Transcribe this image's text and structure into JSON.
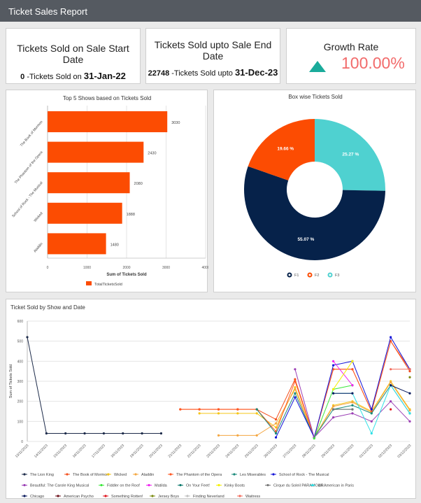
{
  "header": {
    "title": "Ticket Sales Report"
  },
  "kpis": [
    {
      "title": "Tickets Sold on Sale Start Date",
      "value": "0",
      "text": " -Tickets Sold on ",
      "date": "31-Jan-22"
    },
    {
      "title": "Tickets Sold upto Sale End Date",
      "value": "22748",
      "text": " -Tickets Sold upto ",
      "date": "31-Dec-23"
    },
    {
      "title": "Growth Rate",
      "value": "100.00%",
      "icon": "triangle-up-icon",
      "icon_color": "#1aab9b",
      "value_color": "#f26b6b"
    }
  ],
  "chart_data": [
    {
      "type": "bar",
      "orientation": "horizontal",
      "title": "Top 5 Shows based on Tickets Sold",
      "categories": [
        "The Book of Mormon",
        "The Phantom of the Opera",
        "School of Rock - The Musical",
        "Wicked",
        "Aladdin"
      ],
      "values": [
        3030,
        2430,
        2080,
        1888,
        1480
      ],
      "xlabel": "Sum of Tickets Sold",
      "xlim": [
        0,
        4000
      ],
      "xticks": [
        "0",
        "1000",
        "2000",
        "3000",
        "4000"
      ],
      "legend": "TotalTicketsSold",
      "color": "#fc4c02",
      "grid": true,
      "legend_position": "bottom"
    },
    {
      "type": "pie",
      "donut": true,
      "title": "Box wise Tickets Sold",
      "slices": [
        {
          "name": "F3",
          "value": 25.27,
          "label": "25.27 %",
          "color": "#4fd1d0"
        },
        {
          "name": "F1",
          "value": 55.07,
          "label": "55.07 %",
          "color": "#06224a"
        },
        {
          "name": "F2",
          "value": 19.66,
          "label": "19.66 %",
          "color": "#fc4c02"
        }
      ],
      "legend_position": "bottom"
    },
    {
      "type": "line",
      "title": "Ticket Sold by Show and Date",
      "ylabel": "Sum of Tickets Sold",
      "ylim": [
        0,
        600
      ],
      "yticks": [
        "0",
        "100",
        "200",
        "300",
        "400",
        "500",
        "600"
      ],
      "x": [
        "13/11/2023",
        "14/11/2023",
        "15/11/2023",
        "16/11/2023",
        "17/11/2023",
        "18/11/2023",
        "19/11/2023",
        "20/11/2023",
        "21/11/2023",
        "22/11/2023",
        "23/11/2023",
        "24/11/2023",
        "25/11/2023",
        "26/11/2023",
        "27/11/2023",
        "28/11/2023",
        "29/11/2023",
        "30/11/2023",
        "01/12/2023",
        "02/12/2023",
        "03/12/2023"
      ],
      "legend_position": "bottom",
      "grid": true,
      "series": [
        {
          "name": "The Lion King",
          "color": "#1d2b4a",
          "values": [
            520,
            40,
            40,
            40,
            40,
            40,
            40,
            40,
            null,
            null,
            null,
            null,
            null,
            null,
            null,
            null,
            null,
            null,
            null,
            null,
            null
          ]
        },
        {
          "name": "The Book of Mormon",
          "color": "#f4511e",
          "values": [
            null,
            null,
            null,
            null,
            null,
            null,
            null,
            null,
            160,
            160,
            160,
            160,
            160,
            110,
            310,
            20,
            360,
            360,
            150,
            500,
            350
          ]
        },
        {
          "name": "Wicked",
          "color": "#f5c518",
          "values": [
            null,
            null,
            null,
            null,
            null,
            null,
            null,
            null,
            null,
            140,
            140,
            140,
            140,
            70,
            270,
            20,
            180,
            200,
            150,
            300,
            160
          ]
        },
        {
          "name": "Aladdin",
          "color": "#f4a742",
          "values": [
            null,
            null,
            null,
            null,
            null,
            null,
            null,
            null,
            null,
            null,
            30,
            30,
            30,
            90,
            260,
            20,
            175,
            195,
            145,
            295,
            155
          ]
        },
        {
          "name": "The Phantom of the Opera",
          "color": "#ff5722",
          "values": [
            null,
            null,
            null,
            null,
            null,
            null,
            null,
            null,
            160,
            160,
            160,
            160,
            160,
            50,
            300,
            20,
            360,
            360,
            150,
            500,
            360
          ]
        },
        {
          "name": "Les Miserables",
          "color": "#1a8a7a",
          "values": [
            null,
            null,
            null,
            null,
            null,
            null,
            null,
            null,
            null,
            null,
            null,
            null,
            160,
            40,
            240,
            20,
            160,
            180,
            140,
            280,
            140
          ]
        },
        {
          "name": "School of Rock - The Musical",
          "color": "#1414d8",
          "values": [
            null,
            null,
            null,
            null,
            null,
            null,
            null,
            null,
            null,
            null,
            null,
            null,
            null,
            20,
            220,
            20,
            380,
            400,
            160,
            520,
            360
          ]
        },
        {
          "name": "Beautiful: The Carole King Musical",
          "color": "#9b3fb5",
          "values": [
            null,
            null,
            null,
            null,
            null,
            null,
            null,
            null,
            null,
            null,
            null,
            null,
            null,
            null,
            360,
            20,
            120,
            140,
            100,
            200,
            100
          ]
        },
        {
          "name": "Fiddler on the Roof",
          "color": "#3ee83e",
          "values": [
            null,
            null,
            null,
            null,
            null,
            null,
            null,
            null,
            null,
            null,
            null,
            null,
            null,
            null,
            null,
            15,
            260,
            280,
            null,
            null,
            null
          ]
        },
        {
          "name": "Matilda",
          "color": "#f020f0",
          "values": [
            null,
            null,
            null,
            null,
            null,
            null,
            null,
            null,
            null,
            null,
            null,
            null,
            null,
            null,
            null,
            null,
            400,
            280,
            null,
            null,
            null
          ]
        },
        {
          "name": "On Your Feet!",
          "color": "#0e7a6e",
          "values": [
            null,
            null,
            null,
            null,
            null,
            null,
            null,
            null,
            null,
            null,
            null,
            null,
            null,
            null,
            null,
            null,
            160,
            160,
            null,
            null,
            null
          ]
        },
        {
          "name": "Kinky Boots",
          "color": "#f5f000",
          "values": [
            null,
            null,
            null,
            null,
            null,
            null,
            null,
            null,
            null,
            null,
            null,
            null,
            null,
            null,
            null,
            null,
            260,
            400,
            null,
            null,
            null
          ]
        },
        {
          "name": "Cirque du Soleil PARAMOUR",
          "color": "#777777",
          "values": [
            null,
            null,
            null,
            null,
            null,
            null,
            null,
            null,
            null,
            null,
            null,
            null,
            null,
            null,
            null,
            null,
            160,
            160,
            null,
            null,
            null
          ]
        },
        {
          "name": "An American in Paris",
          "color": "#2ee0e6",
          "values": [
            null,
            null,
            null,
            null,
            null,
            null,
            null,
            null,
            null,
            null,
            null,
            null,
            null,
            null,
            null,
            null,
            240,
            240,
            40,
            280,
            140
          ]
        },
        {
          "name": "Chicago",
          "color": "#0a1a5c",
          "values": [
            null,
            null,
            null,
            null,
            null,
            null,
            null,
            null,
            null,
            null,
            null,
            null,
            null,
            null,
            null,
            null,
            240,
            240,
            null,
            280,
            240
          ]
        },
        {
          "name": "American Psycho",
          "color": "#6b0f1a",
          "values": [
            null,
            null,
            null,
            null,
            null,
            null,
            null,
            null,
            null,
            null,
            null,
            null,
            null,
            null,
            null,
            null,
            null,
            null,
            null,
            null,
            null
          ]
        },
        {
          "name": "Something Rotten!",
          "color": "#e0141e",
          "values": [
            null,
            null,
            null,
            null,
            null,
            null,
            null,
            null,
            null,
            null,
            null,
            null,
            null,
            null,
            null,
            null,
            null,
            null,
            null,
            160,
            null
          ]
        },
        {
          "name": "Jersey Boys",
          "color": "#7a8a10",
          "values": [
            null,
            null,
            null,
            null,
            null,
            null,
            null,
            null,
            null,
            null,
            null,
            null,
            null,
            null,
            null,
            null,
            null,
            null,
            null,
            null,
            320
          ]
        },
        {
          "name": "Finding Neverland",
          "color": "#c0c0c0",
          "values": [
            null,
            null,
            null,
            null,
            null,
            null,
            null,
            null,
            null,
            null,
            null,
            null,
            null,
            null,
            null,
            null,
            null,
            null,
            null,
            null,
            null
          ]
        },
        {
          "name": "Waitress",
          "color": "#f26b5b",
          "values": [
            null,
            null,
            null,
            null,
            null,
            null,
            null,
            null,
            null,
            null,
            null,
            null,
            null,
            null,
            null,
            null,
            null,
            null,
            null,
            360,
            360
          ]
        }
      ]
    }
  ]
}
